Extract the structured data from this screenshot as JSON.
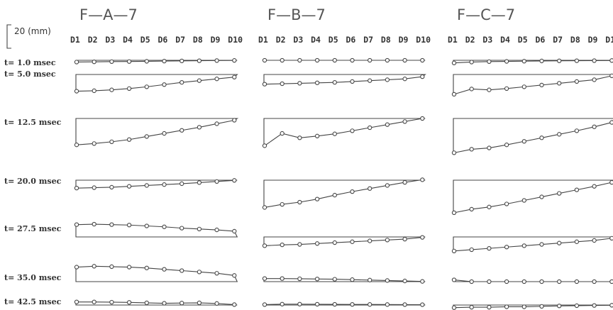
{
  "scale_label": "20 (mm)",
  "time_labels": [
    "t= 1.0  msec",
    "t= 5.0  msec",
    "t= 12.5 msec",
    "t= 20.0 msec",
    "t= 27.5 msec",
    "t= 35.0 msec",
    "t= 42.5 msec"
  ],
  "chart_data": {
    "type": "line",
    "categories": [
      "D1",
      "D2",
      "D3",
      "D4",
      "D5",
      "D6",
      "D7",
      "D8",
      "D9",
      "D10"
    ],
    "unit": "mm",
    "scale_bar": 20,
    "panels": [
      {
        "title": "F—A—7",
        "series": [
          {
            "name": "t= 1.0  msec",
            "frame_depth": 4,
            "values": [
              4,
              3.5,
              3,
              2.8,
              2.3,
              1.8,
              1.4,
              1.0,
              0.6,
              0.3
            ]
          },
          {
            "name": "t= 5.0  msec",
            "frame_depth": 38,
            "values": [
              38,
              37,
              35,
              32,
              28,
              23,
              18,
              14,
              10,
              6
            ]
          },
          {
            "name": "t= 12.5 msec",
            "frame_depth": 60,
            "values": [
              60,
              57,
              53,
              48,
              41,
              34,
              27,
              20,
              12,
              4
            ]
          },
          {
            "name": "t= 20.0 msec",
            "frame_depth": 18,
            "values": [
              18,
              17,
              16,
              14,
              12,
              10,
              8,
              5.5,
              3,
              0.5
            ]
          },
          {
            "name": "t= 27.5 msec",
            "frame_depth": -28,
            "values": [
              -28,
              -29,
              -28,
              -27,
              -25,
              -23,
              -20,
              -18,
              -16,
              -13
            ]
          },
          {
            "name": "t= 35.0 msec",
            "frame_depth": -33,
            "values": [
              -33,
              -35,
              -34,
              -33,
              -31,
              -28,
              -25,
              -22,
              -19,
              -14
            ]
          },
          {
            "name": "t= 42.5 msec",
            "frame_depth": -7,
            "values": [
              -7,
              -7,
              -6.5,
              -6,
              -5,
              -4,
              -4.5,
              -5,
              -3.5,
              -1
            ]
          }
        ]
      },
      {
        "title": "F—B—7",
        "series": [
          {
            "name": "t= 1.0  msec",
            "frame_depth": 0,
            "values": [
              0,
              0,
              0,
              0,
              0,
              0,
              0,
              0,
              0,
              0
            ]
          },
          {
            "name": "t= 5.0  msec",
            "frame_depth": 22,
            "values": [
              22,
              21,
              20,
              19,
              18,
              16,
              14,
              12,
              10,
              5
            ]
          },
          {
            "name": "t= 12.5 msec",
            "frame_depth": 62,
            "values": [
              62,
              34,
              44,
              40,
              35,
              28,
              21,
              14,
              7,
              0
            ]
          },
          {
            "name": "t= 20.0 msec",
            "frame_depth": 62,
            "values": [
              62,
              55,
              50,
              43,
              34,
              26,
              19,
              12,
              5,
              -1
            ]
          },
          {
            "name": "t= 27.5 msec",
            "frame_depth": 20,
            "values": [
              20,
              18,
              17,
              15,
              13,
              11,
              9,
              7,
              5,
              1
            ]
          },
          {
            "name": "t= 35.0 msec",
            "frame_depth": -7,
            "values": [
              -7,
              -7,
              -6.5,
              -6,
              -5.5,
              -4.5,
              -3.5,
              -2.5,
              -1.5,
              -0.5
            ]
          },
          {
            "name": "t= 42.5 msec",
            "frame_depth": -1,
            "values": [
              -1,
              -2,
              -2,
              -1.8,
              -1.6,
              -1.4,
              -1.3,
              -1.1,
              -1,
              -0.8
            ]
          }
        ]
      },
      {
        "title": "F—C—7",
        "series": [
          {
            "name": "t= 1.0  msec",
            "frame_depth": 6,
            "values": [
              6,
              4,
              3,
              2.5,
              2,
              1.5,
              1.2,
              1,
              0.8,
              0.5
            ]
          },
          {
            "name": "t= 5.0  msec",
            "frame_depth": 45,
            "values": [
              45,
              33,
              35,
              32,
              28,
              24,
              20,
              16,
              12,
              3
            ]
          },
          {
            "name": "t= 12.5 msec",
            "frame_depth": 78,
            "values": [
              78,
              70,
              67,
              60,
              52,
              44,
              36,
              28,
              19,
              9
            ]
          },
          {
            "name": "t= 20.0 msec",
            "frame_depth": 74,
            "values": [
              74,
              66,
              61,
              54,
              46,
              38,
              30,
              22,
              14,
              5
            ]
          },
          {
            "name": "t= 27.5 msec",
            "frame_depth": 32,
            "values": [
              32,
              29,
              26,
              23,
              20,
              17,
              14,
              11,
              8,
              3
            ]
          },
          {
            "name": "t= 35.0 msec",
            "frame_depth": -4,
            "values": [
              -4,
              0,
              0,
              0,
              0,
              0,
              0,
              0,
              0,
              0
            ]
          },
          {
            "name": "t= 42.5 msec",
            "frame_depth": 6,
            "values": [
              6,
              5,
              5,
              4,
              4,
              3,
              2,
              1.5,
              1,
              0.5
            ]
          }
        ]
      }
    ]
  }
}
